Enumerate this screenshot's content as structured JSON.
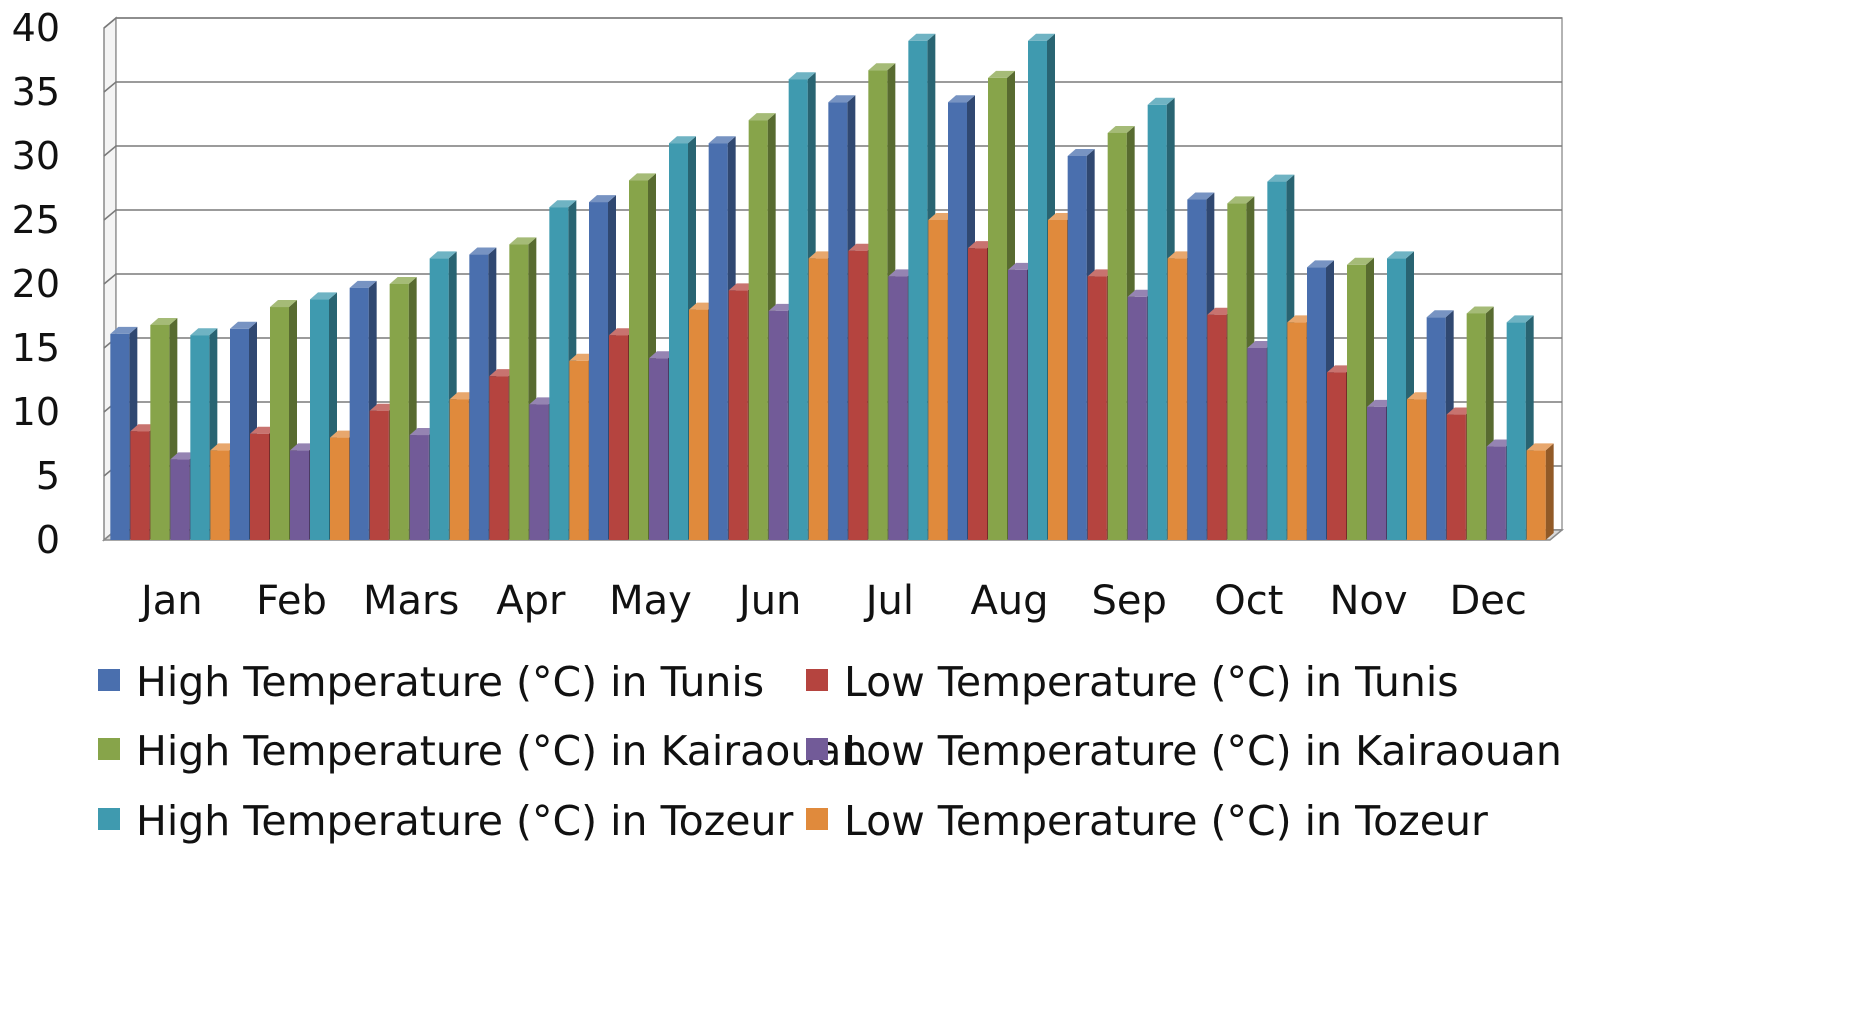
{
  "chart_data": {
    "type": "bar",
    "title": "",
    "xlabel": "",
    "ylabel": "",
    "ylim": [
      0,
      40
    ],
    "yticks": [
      0,
      5,
      10,
      15,
      20,
      25,
      30,
      35,
      40
    ],
    "grid": true,
    "legend_position": "bottom",
    "categories": [
      "Jan",
      "Feb",
      "Mars",
      "Apr",
      "May",
      "Jun",
      "Jul",
      "Aug",
      "Sep",
      "Oct",
      "Nov",
      "Dec"
    ],
    "series": [
      {
        "name": "High Temperature (°C) in Tunis",
        "color": "#4a6fae",
        "values": [
          16.1,
          16.5,
          19.7,
          22.3,
          26.4,
          31.0,
          34.2,
          34.2,
          30.0,
          26.6,
          21.3,
          17.4
        ]
      },
      {
        "name": "Low Temperature (°C) in Tunis",
        "color": "#b5443f",
        "values": [
          8.5,
          8.3,
          10.1,
          12.8,
          16.0,
          19.5,
          22.6,
          22.8,
          20.6,
          17.6,
          13.1,
          9.8
        ]
      },
      {
        "name": "High Temperature (°C) in Kairaouan",
        "color": "#87a44a",
        "values": [
          16.8,
          18.2,
          20.0,
          23.1,
          28.1,
          32.8,
          36.7,
          36.1,
          31.8,
          26.3,
          21.5,
          17.7
        ]
      },
      {
        "name": "Low Temperature (°C) in Kairaouan",
        "color": "#725b98",
        "values": [
          6.3,
          7.0,
          8.2,
          10.6,
          14.2,
          17.9,
          20.6,
          21.1,
          19.0,
          15.0,
          10.4,
          7.3
        ]
      },
      {
        "name": "High Temperature (°C) in Tozeur",
        "color": "#3f9aaf",
        "values": [
          16.0,
          18.8,
          22.0,
          26.0,
          31.0,
          36.0,
          39.0,
          39.0,
          34.0,
          28.0,
          22.0,
          17.0
        ]
      },
      {
        "name": "Low Temperature (°C) in Tozeur",
        "color": "#e08a3c",
        "values": [
          7.0,
          8.0,
          11.0,
          14.0,
          18.0,
          22.0,
          25.0,
          25.0,
          22.0,
          17.0,
          11.0,
          7.0
        ]
      }
    ]
  }
}
